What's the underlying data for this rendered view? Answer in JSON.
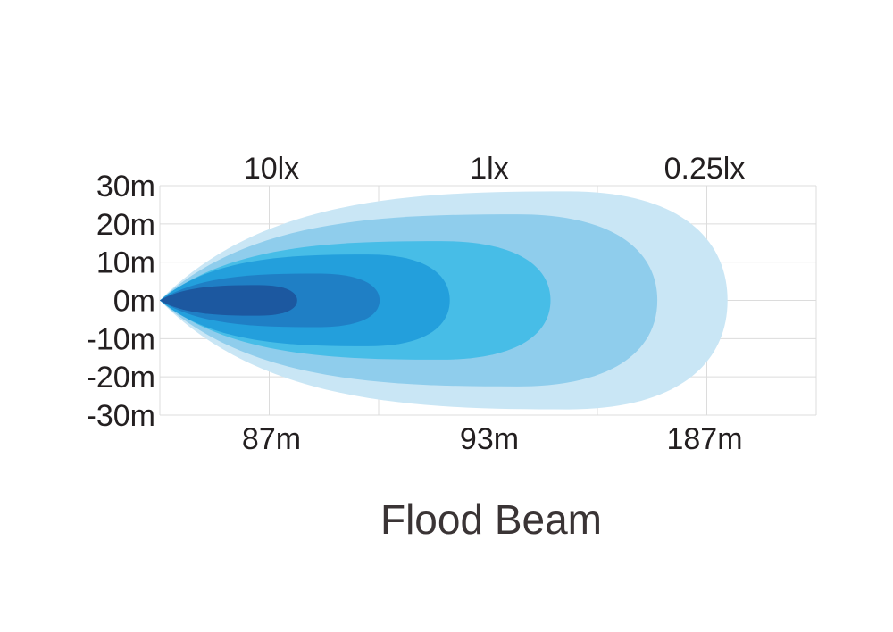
{
  "chart_data": {
    "type": "area",
    "title": "Flood Beam",
    "y_ticks": [
      "30m",
      "20m",
      "10m",
      "0m",
      "-10m",
      "-20m",
      "-30m"
    ],
    "y_values": [
      30,
      20,
      10,
      0,
      -10,
      -20,
      -30
    ],
    "ylim": [
      -30,
      30
    ],
    "lux_labels": [
      "10lx",
      "1lx",
      "0.25lx"
    ],
    "distance_labels": [
      "87m",
      "93m",
      "187m"
    ],
    "grid": true,
    "beam_zones": [
      {
        "reach": 186,
        "half_width": 28.5,
        "color": "#c9e6f5"
      },
      {
        "reach": 163,
        "half_width": 22.5,
        "color": "#8fcdec"
      },
      {
        "reach": 128,
        "half_width": 15.5,
        "color": "#47bde7"
      },
      {
        "reach": 95,
        "half_width": 12,
        "color": "#239fdc"
      },
      {
        "reach": 72,
        "half_width": 7,
        "color": "#1f7fc5"
      },
      {
        "reach": 45,
        "half_width": 4,
        "color": "#1c58a0"
      }
    ]
  }
}
